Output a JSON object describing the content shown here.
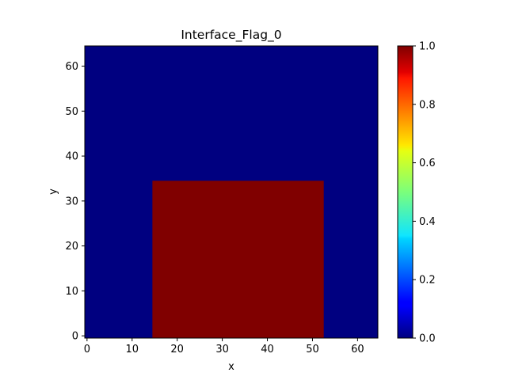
{
  "chart_data": {
    "type": "heatmap",
    "title": "Interface_Flag_0",
    "xlabel": "x",
    "ylabel": "y",
    "xlim": [
      -0.5,
      64.5
    ],
    "ylim": [
      -0.5,
      64.5
    ],
    "xticks": [
      "0",
      "10",
      "20",
      "30",
      "40",
      "50",
      "60"
    ],
    "yticks": [
      "0",
      "10",
      "20",
      "30",
      "40",
      "50",
      "60"
    ],
    "grid": false,
    "colormap": "jet",
    "vmin": 0.0,
    "vmax": 1.0,
    "background_value": 0.0,
    "regions": [
      {
        "value": 1.0,
        "x_range": [
          15,
          52
        ],
        "y_range": [
          0,
          34
        ]
      }
    ],
    "colorbar": {
      "ticks": [
        "0.0",
        "0.2",
        "0.4",
        "0.6",
        "0.8",
        "1.0"
      ]
    },
    "colors": {
      "low": "#000080",
      "high": "#800000"
    }
  }
}
